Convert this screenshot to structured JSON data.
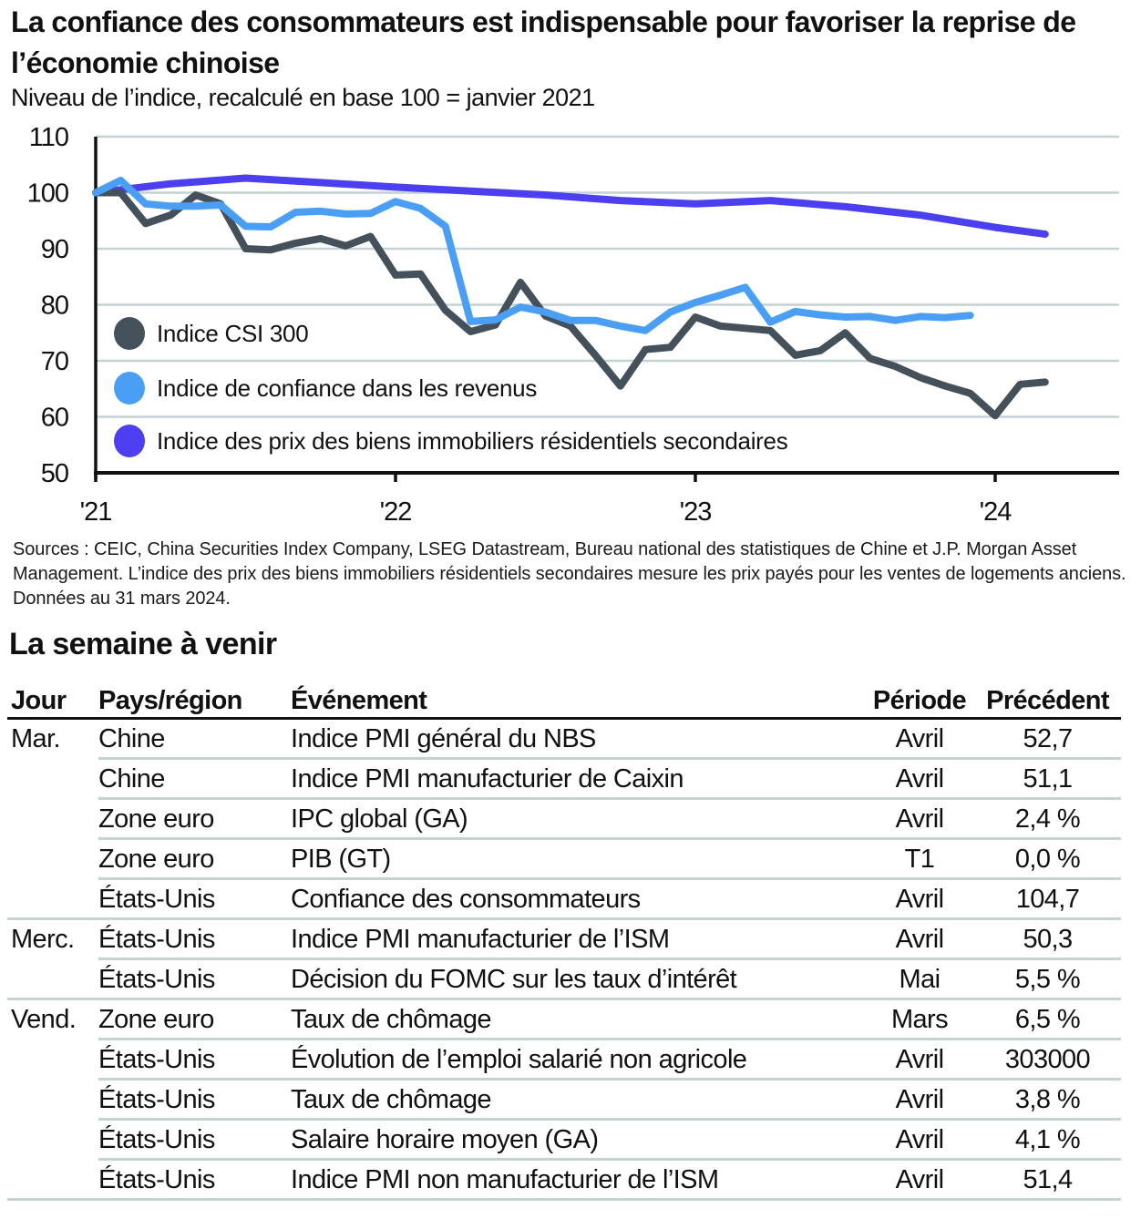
{
  "title": "La confiance des consommateurs est indispensable pour favoriser la reprise de l’économie chinoise",
  "subtitle": "Niveau de l’indice, recalculé en base 100 = janvier 2021",
  "colors": {
    "csi300": "#44505a",
    "income_confidence": "#4a9ff5",
    "home_prices": "#4b3ff0",
    "grid": "#c4d3d2",
    "axis": "#111111"
  },
  "chart_data": {
    "type": "line",
    "title": "La confiance des consommateurs est indispensable pour favoriser la reprise de l’économie chinoise",
    "subtitle": "Niveau de l’indice, recalculé en base 100 = janvier 2021",
    "xlabel": "",
    "ylabel": "",
    "ylim": [
      50,
      110
    ],
    "yticks": [
      50,
      60,
      70,
      80,
      90,
      100,
      110
    ],
    "ytick_labels": [
      "50",
      "60",
      "70",
      "80",
      "90",
      "100",
      "110"
    ],
    "x_start": "2021-01",
    "x_range_months": [
      0,
      43
    ],
    "xticks_months": [
      0,
      12,
      24,
      36
    ],
    "xtick_labels": [
      "'21",
      "'22",
      "'23",
      "'24"
    ],
    "grid": "horizontal",
    "legend_position": "bottom-left inside plot",
    "series": [
      {
        "key": "csi300",
        "name": "Indice CSI 300",
        "x_months": [
          0,
          1,
          2,
          3,
          4,
          5,
          6,
          7,
          8,
          9,
          10,
          11,
          12,
          13,
          14,
          15,
          16,
          17,
          18,
          19,
          20,
          21,
          22,
          23,
          24,
          25,
          26,
          27,
          28,
          29,
          30,
          31,
          32,
          33,
          34,
          35,
          36,
          37,
          38
        ],
        "values": [
          100,
          100,
          94.5,
          96,
          99.6,
          98,
          90,
          89.8,
          91,
          91.8,
          90.5,
          92.2,
          85.3,
          85.5,
          79,
          75.2,
          76.4,
          84,
          78,
          76.2,
          71,
          65.5,
          72,
          72.4,
          77.8,
          76.2,
          75.8,
          75.4,
          71,
          71.8,
          75,
          70.4,
          69,
          67,
          65.5,
          64.2,
          60.2,
          65.8,
          66.2
        ]
      },
      {
        "key": "income_confidence",
        "name": "Indice de confiance dans les revenus",
        "x_months": [
          0,
          1,
          2,
          3,
          4,
          5,
          6,
          7,
          8,
          9,
          10,
          11,
          12,
          13,
          14,
          15,
          16,
          17,
          18,
          19,
          20,
          21,
          22,
          23,
          24,
          25,
          26,
          27,
          28,
          29,
          30,
          31,
          32,
          33,
          34,
          35
        ],
        "values": [
          100,
          102.2,
          98,
          97.6,
          97.6,
          97.8,
          94,
          93.9,
          96.5,
          96.7,
          96.2,
          96.3,
          98.4,
          97.2,
          94,
          77,
          77.3,
          79.6,
          78.7,
          77.2,
          77.2,
          76.2,
          75.4,
          78.7,
          80.4,
          81.7,
          83.1,
          76.9,
          78.8,
          78.2,
          77.8,
          77.9,
          77.2,
          77.9,
          77.7,
          78.1
        ]
      },
      {
        "key": "home_prices",
        "name": "Indice des prix des biens immobiliers résidentiels secondaires",
        "x_months": [
          0,
          3,
          6,
          9,
          12,
          15,
          18,
          21,
          24,
          27,
          30,
          33,
          36,
          38
        ],
        "values": [
          100,
          101.6,
          102.6,
          101.8,
          101.0,
          100.3,
          99.6,
          98.6,
          98.0,
          98.6,
          97.5,
          96.0,
          93.8,
          92.6
        ]
      }
    ]
  },
  "sources": "Sources : CEIC, China Securities Index Company, LSEG Datastream, Bureau national des statistiques de Chine et J.P. Morgan Asset Management. L’indice des prix des biens immobiliers résidentiels secondaires mesure les prix payés pour les ventes de logements anciens. Données au 31 mars 2024.",
  "week": {
    "title": "La semaine à venir",
    "headers": {
      "day": "Jour",
      "country": "Pays/région",
      "event": "Événement",
      "period": "Période",
      "previous": "Précédent"
    },
    "rows": [
      {
        "day": "Mar.",
        "country": "Chine",
        "event": "Indice PMI général du NBS",
        "period": "Avril",
        "previous": "52,7"
      },
      {
        "day": "",
        "country": "Chine",
        "event": "Indice PMI manufacturier de Caixin",
        "period": "Avril",
        "previous": "51,1"
      },
      {
        "day": "",
        "country": "Zone euro",
        "event": "IPC global (GA)",
        "period": "Avril",
        "previous": "2,4 %"
      },
      {
        "day": "",
        "country": "Zone euro",
        "event": "PIB (GT)",
        "period": "T1",
        "previous": "0,0 %"
      },
      {
        "day": "",
        "country": "États-Unis",
        "event": "Confiance des consommateurs",
        "period": "Avril",
        "previous": "104,7"
      },
      {
        "day": "Merc.",
        "country": "États-Unis",
        "event": "Indice PMI manufacturier de l’ISM",
        "period": "Avril",
        "previous": "50,3"
      },
      {
        "day": "",
        "country": "États-Unis",
        "event": "Décision du FOMC sur les taux d’intérêt",
        "period": "Mai",
        "previous": "5,5 %"
      },
      {
        "day": "Vend.",
        "country": "Zone euro",
        "event": "Taux de chômage",
        "period": "Mars",
        "previous": "6,5 %"
      },
      {
        "day": "",
        "country": "États-Unis",
        "event": "Évolution de l’emploi salarié non agricole",
        "period": "Avril",
        "previous": "303000"
      },
      {
        "day": "",
        "country": "États-Unis",
        "event": "Taux de chômage",
        "period": "Avril",
        "previous": "3,8 %"
      },
      {
        "day": "",
        "country": "États-Unis",
        "event": "Salaire horaire moyen (GA)",
        "period": "Avril",
        "previous": "4,1 %"
      },
      {
        "day": "",
        "country": "États-Unis",
        "event": "Indice PMI non manufacturier de l’ISM",
        "period": "Avril",
        "previous": "51,4"
      }
    ]
  }
}
